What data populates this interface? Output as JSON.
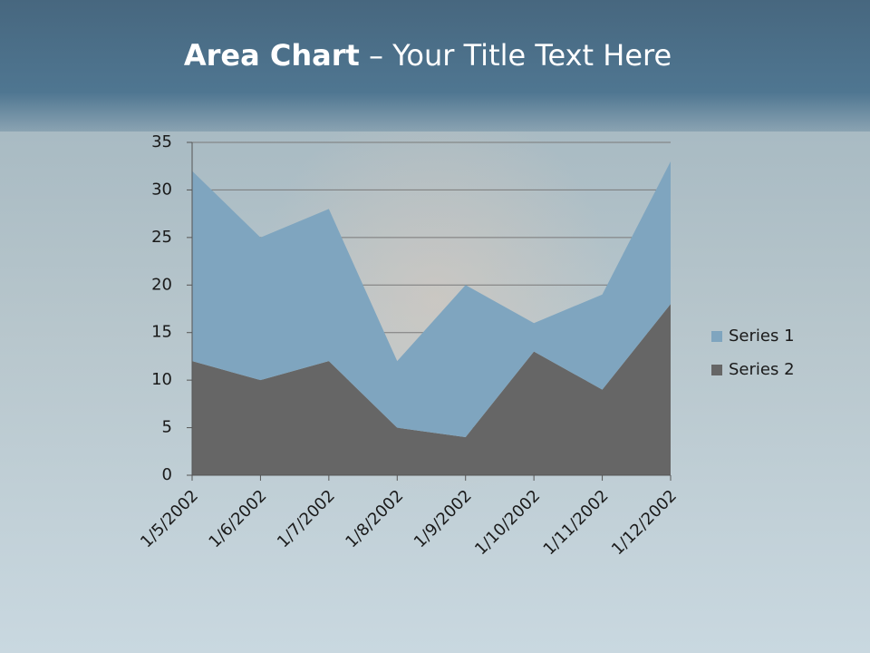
{
  "chart_data": {
    "type": "stacked_area",
    "title": [
      "Area Chart",
      "– Your Title Text Here"
    ],
    "categories": [
      "1/5/2002",
      "1/6/2002",
      "1/7/2002",
      "1/8/2002",
      "1/9/2002",
      "1/10/2002",
      "1/11/2002",
      "1/12/2002"
    ],
    "series": [
      {
        "name": "Series 1",
        "color": "#7fa5bf",
        "values": [
          20,
          15,
          16,
          7,
          16,
          3,
          10,
          15
        ]
      },
      {
        "name": "Series 2",
        "color": "#666666",
        "values": [
          12,
          10,
          12,
          5,
          4,
          13,
          9,
          18
        ]
      }
    ],
    "ylim": [
      0,
      35
    ],
    "yticks": [
      0,
      5,
      10,
      15,
      20,
      25,
      30,
      35
    ],
    "grid": true,
    "legend": "right"
  }
}
